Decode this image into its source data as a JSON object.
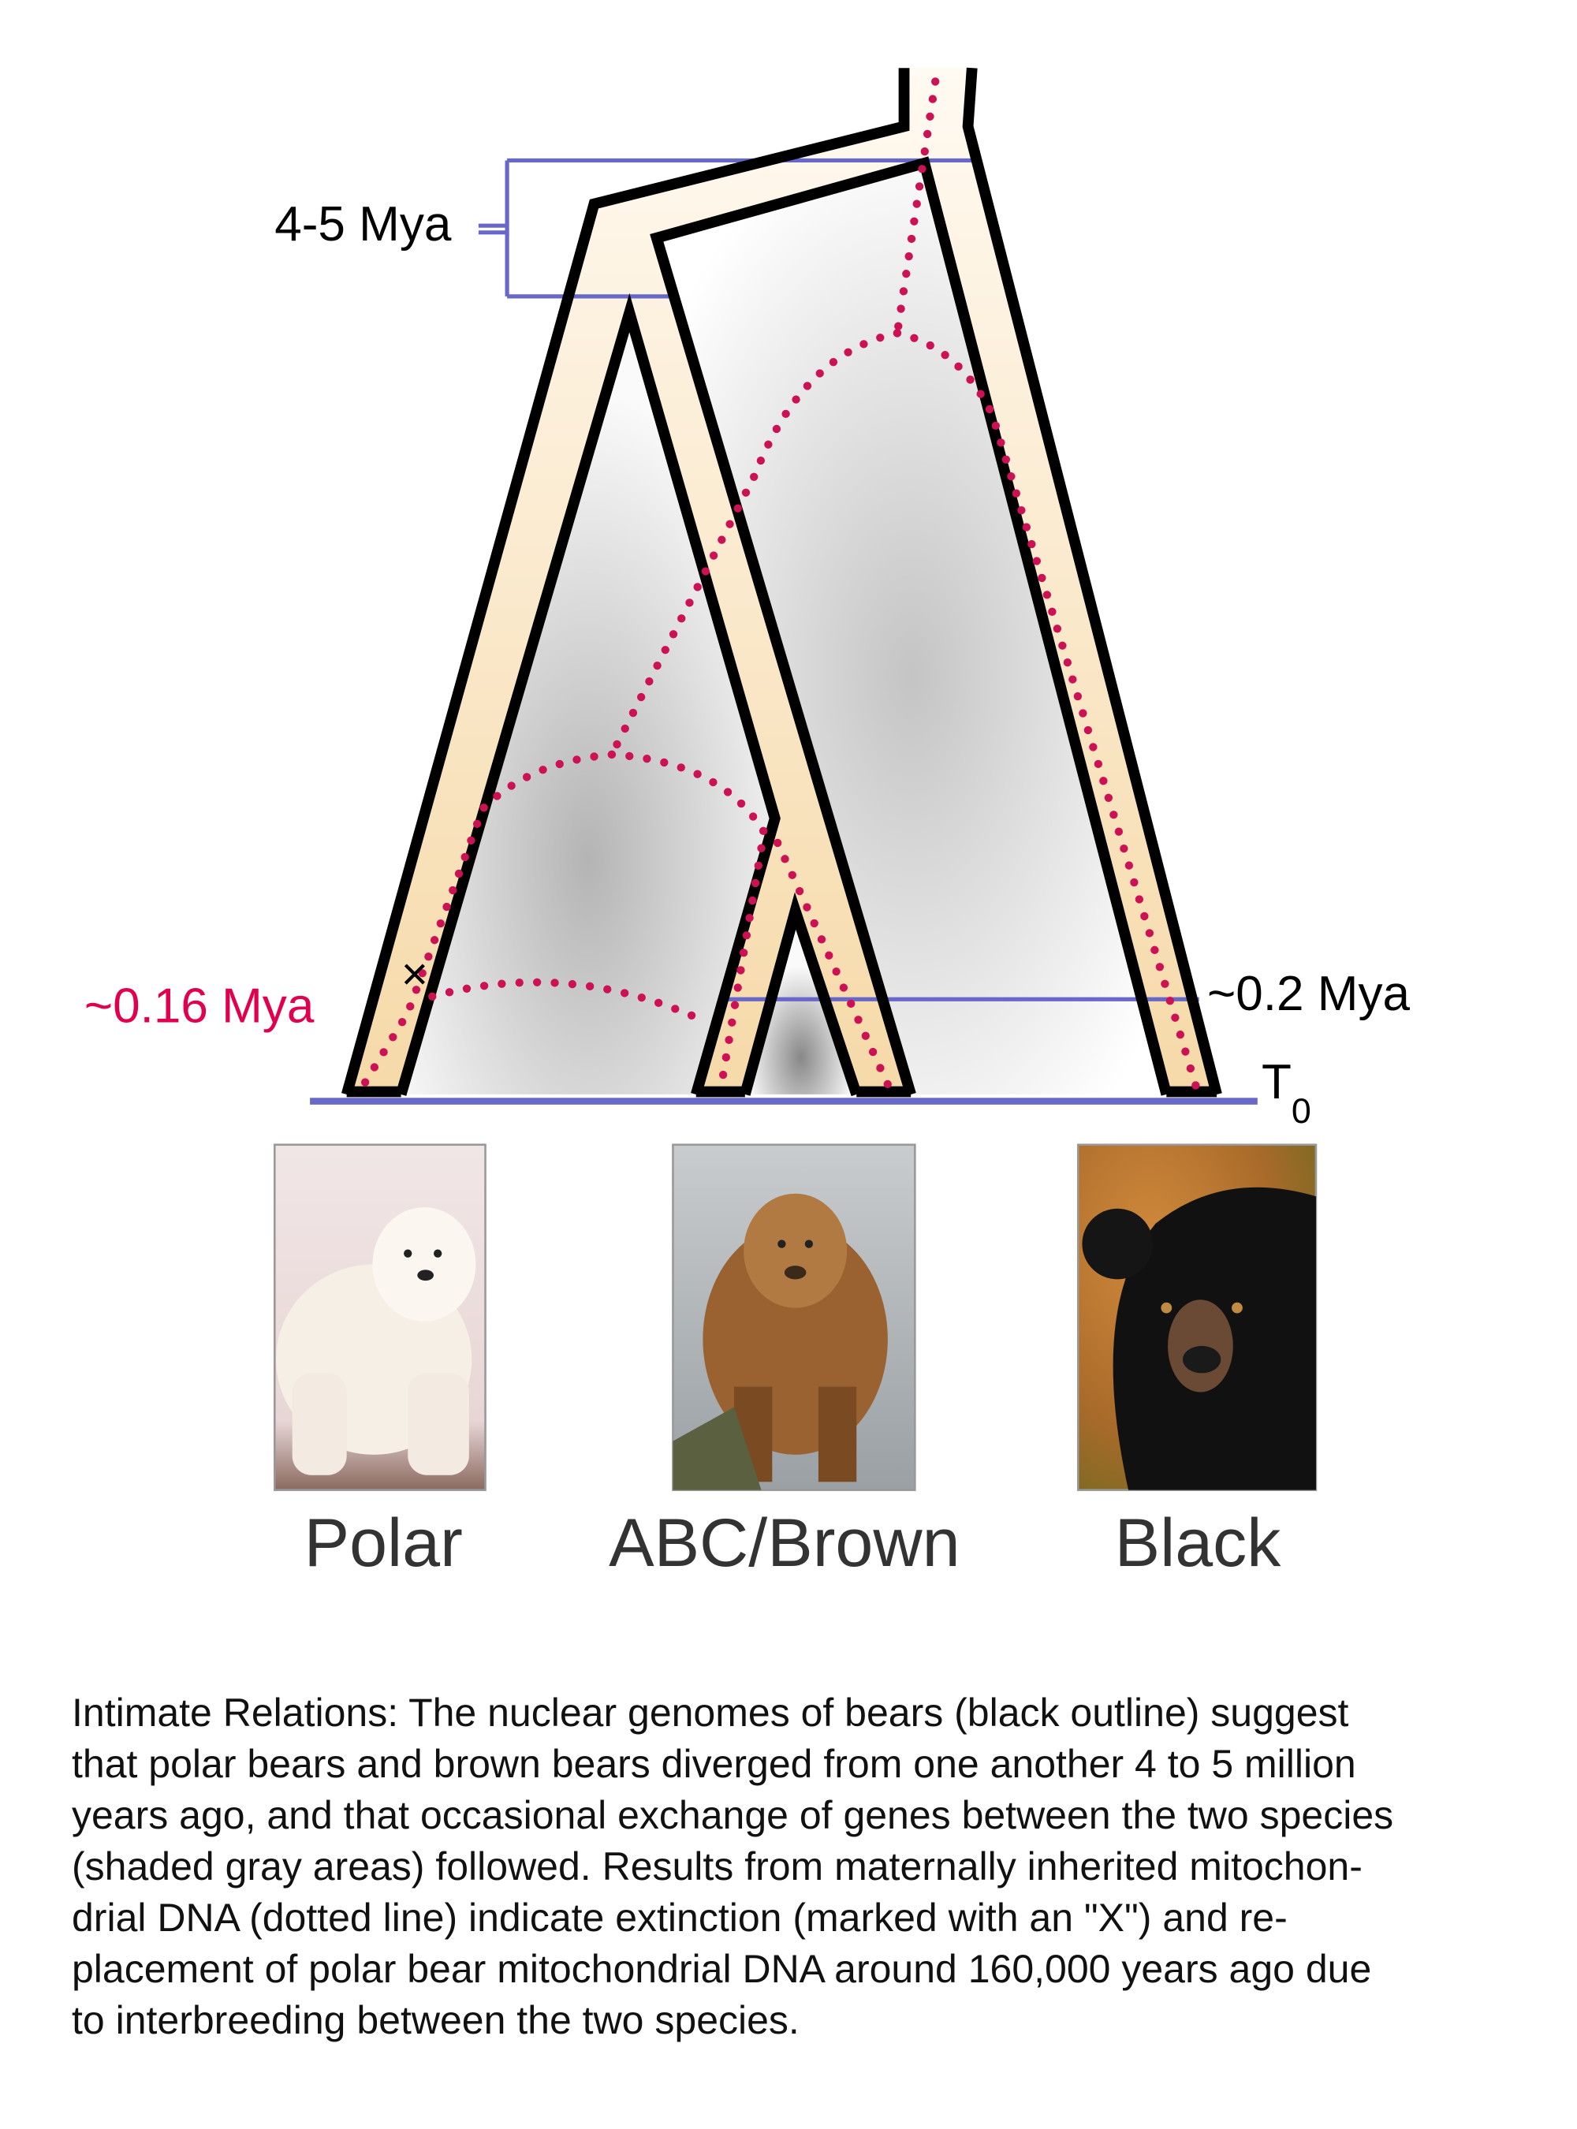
{
  "diagram": {
    "labels": {
      "divergence": "4-5 Mya",
      "mito_replacement": "~0.16 Mya",
      "brown_black_split": "~0.2 Mya",
      "present_time": "T",
      "present_time_sub": "0"
    },
    "species": [
      {
        "name": "Polar"
      },
      {
        "name": "ABC/Brown"
      },
      {
        "name": "Black"
      }
    ],
    "extinction_marker": "×",
    "colors": {
      "outline": "#000000",
      "lineage_fill": "#fbe8c6",
      "mtdna_dots": "#cc1155",
      "time_lines": "#6868c8",
      "highlight_label": "#e0004d"
    }
  },
  "caption": {
    "lines": [
      "Intimate Relations: The nuclear genomes of bears (black outline) suggest",
      "that polar bears and brown bears diverged from one another 4 to 5 million",
      "years ago, and that occasional exchange of genes between the two species",
      "(shaded gray areas) followed. Results from maternally inherited mitochon-",
      "drial DNA (dotted line) indicate extinction (marked with an \"X\") and re-",
      "placement of polar bear mitochondrial DNA around 160,000 years ago due",
      "to interbreeding between the two species."
    ]
  }
}
